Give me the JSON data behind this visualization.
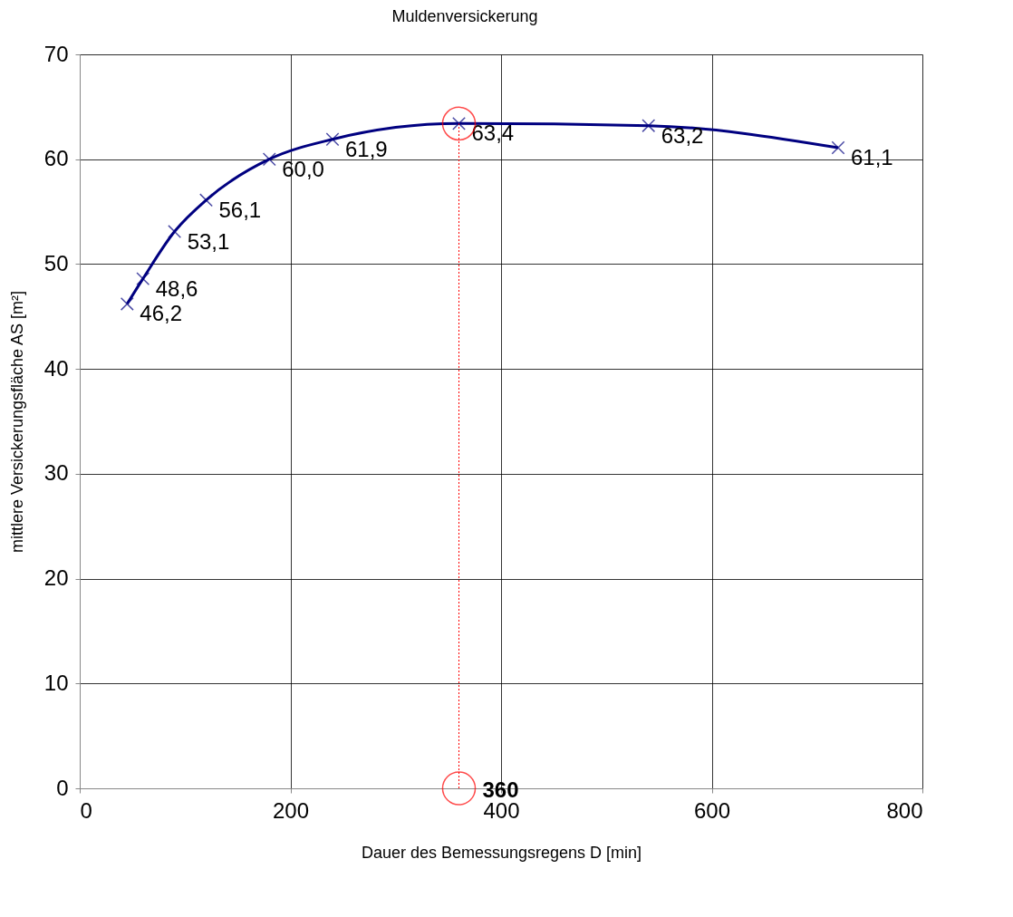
{
  "chart_data": {
    "type": "line",
    "title": "Muldenversickerung",
    "xlabel": "Dauer des Bemessungsregens  D [min]",
    "ylabel": "mittlere Versickerungsfläche AS [m²]",
    "xlim": [
      0,
      800
    ],
    "xticks": [
      0,
      200,
      400,
      600,
      800
    ],
    "ylim": [
      0,
      70
    ],
    "yticks": [
      0,
      10,
      20,
      30,
      40,
      50,
      60,
      70
    ],
    "grid": true,
    "series": [
      {
        "color": "#000080",
        "marker": "cross",
        "line_style": "solid",
        "x": [
          45,
          60,
          90,
          120,
          180,
          240,
          360,
          540,
          720
        ],
        "values": [
          46.2,
          48.6,
          53.1,
          56.1,
          60.0,
          61.9,
          63.4,
          63.2,
          61.1
        ],
        "value_labels": [
          "46,2",
          "48,6",
          "53,1",
          "56,1",
          "60,0",
          "61,9",
          "63,4",
          "63,2",
          "61,1"
        ]
      },
      {
        "color": "#ff0000",
        "marker": "circle",
        "line_style": "dotted",
        "x": [
          360,
          360
        ],
        "values": [
          0,
          63.4
        ]
      }
    ],
    "annotations": [
      {
        "text": "360",
        "x": 360,
        "y": 0
      }
    ]
  }
}
